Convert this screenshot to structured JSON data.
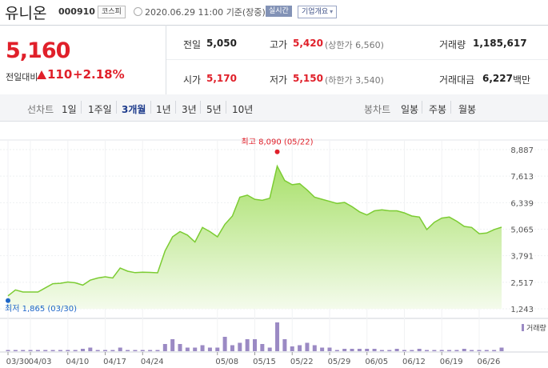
{
  "header": {
    "name": "유니온",
    "code": "000910",
    "market": "코스피",
    "date": "2020.06.29 11:00",
    "basis": "기준(장중)",
    "realtime": "실시간",
    "info": "기업개요",
    "info_arrow": "▾"
  },
  "summary": {
    "price": "5,160",
    "prev_label": "전일대비",
    "change": "110",
    "change_pct": "+2.18%",
    "prev_close_label": "전일",
    "prev_close": "5,050",
    "open_label": "시가",
    "open": "5,170",
    "high_label": "고가",
    "high": "5,420",
    "upper_limit": "(상한가 6,560)",
    "low_label": "저가",
    "low": "5,150",
    "lower_limit": "(하한가 3,540)",
    "volume_label": "거래량",
    "volume": "1,185,617",
    "amount_label": "거래대금",
    "amount": "6,227",
    "amount_unit": "백만"
  },
  "periods": {
    "line_label": "선차트",
    "line_items": [
      "1일",
      "1주일",
      "3개월",
      "1년",
      "3년",
      "5년",
      "10년"
    ],
    "active": "3개월",
    "candle_label": "봉차트",
    "candle_items": [
      "일봉",
      "주봉",
      "월봉"
    ]
  },
  "colors": {
    "up": "#e0202a",
    "line": "#7ccc33",
    "fill_top": "#a8e06a",
    "fill_bottom": "#f4fbec",
    "volume": "#9b8ac4",
    "accent": "#1e3c8c"
  },
  "chart_data": {
    "type": "area",
    "x_ticks": [
      "03/30",
      "04/03",
      "04/10",
      "04/17",
      "04/24",
      "05/08",
      "05/15",
      "05/22",
      "05/29",
      "06/05",
      "06/12",
      "06/19",
      "06/26"
    ],
    "y_ticks": [
      8887,
      7613,
      6339,
      5065,
      3791,
      2517,
      1243
    ],
    "y_tick_labels": [
      "8,887",
      "7,613",
      "6,339",
      "5,065",
      "3,791",
      "2,517",
      "1,243"
    ],
    "ylim": [
      1243,
      8887
    ],
    "grid": true,
    "high_label": "최고 8,090 (05/22)",
    "low_label": "최저 1,865 (03/30)",
    "volume_label": "거래량",
    "price_values": [
      1865,
      2150,
      2050,
      2050,
      2050,
      2250,
      2450,
      2470,
      2530,
      2490,
      2380,
      2620,
      2720,
      2780,
      2720,
      3200,
      3050,
      2980,
      3000,
      2990,
      2970,
      4020,
      4700,
      4950,
      4780,
      4450,
      5150,
      4950,
      4700,
      5300,
      5700,
      6600,
      6700,
      6500,
      6450,
      6550,
      8090,
      7400,
      7200,
      7250,
      6950,
      6600,
      6500,
      6400,
      6300,
      6350,
      6150,
      5900,
      5750,
      5950,
      6000,
      5950,
      5950,
      5850,
      5700,
      5650,
      5050,
      5400,
      5600,
      5650,
      5450,
      5200,
      5150,
      4850,
      4880,
      5050,
      5160
    ],
    "volume_values": [
      1,
      1,
      1,
      1,
      1,
      1,
      1,
      1,
      1,
      1,
      2,
      3,
      1,
      1,
      1,
      3,
      1,
      1,
      1,
      1,
      1,
      6,
      10,
      6,
      3,
      3,
      5,
      3,
      3,
      12,
      5,
      7,
      10,
      10,
      6,
      3,
      24,
      10,
      4,
      5,
      7,
      5,
      3,
      3,
      1,
      2,
      2,
      2,
      2,
      2,
      1,
      1,
      2,
      1,
      1,
      2,
      1,
      1,
      1,
      1,
      1,
      2,
      1,
      1,
      1,
      1,
      3
    ]
  }
}
